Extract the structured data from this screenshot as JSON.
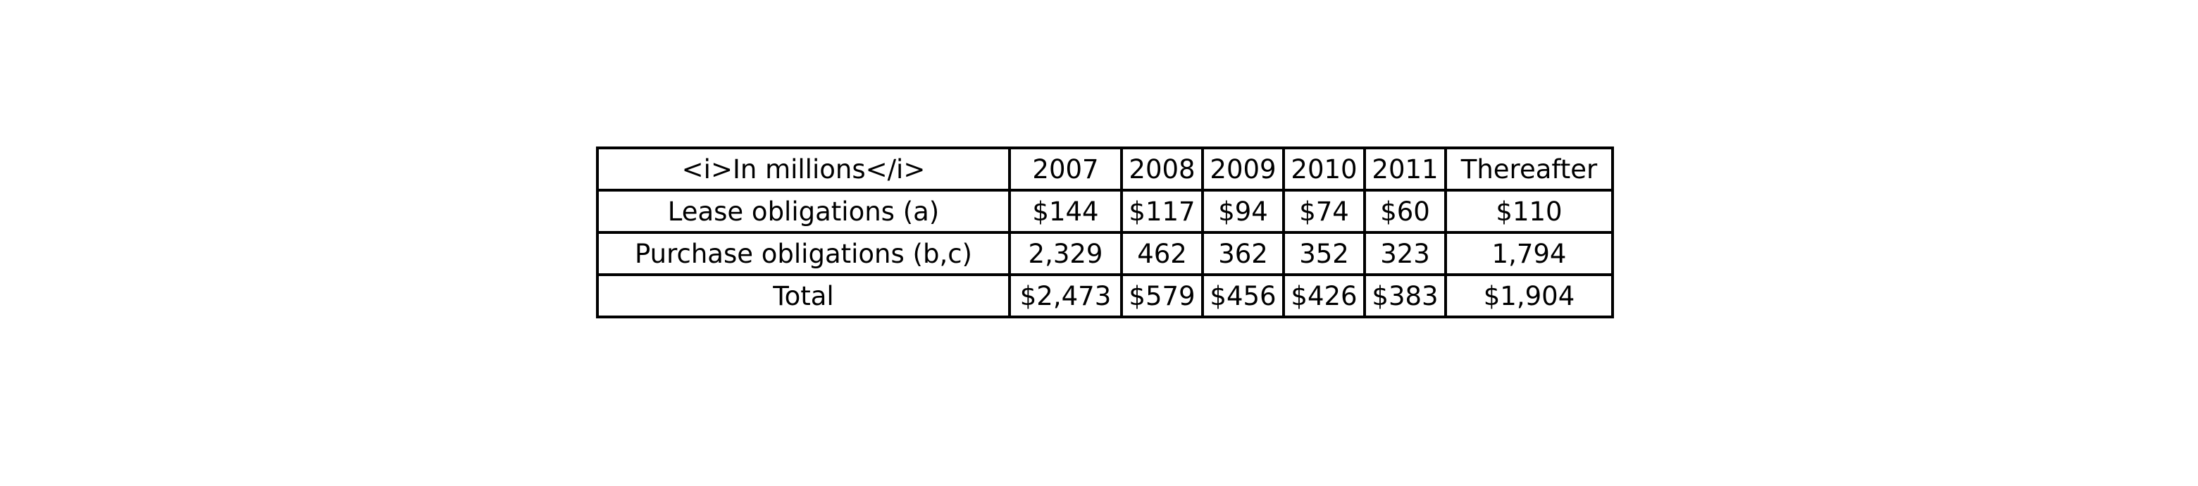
{
  "chart_data": {
    "type": "table",
    "columns": [
      "<i>In millions</i>",
      "2007",
      "2008",
      "2009",
      "2010",
      "2011",
      "Thereafter"
    ],
    "rows": [
      [
        "Lease obligations (a)",
        "$144",
        "$117",
        "$94",
        "$74",
        "$60",
        "$110"
      ],
      [
        "Purchase obligations (b,c)",
        "2,329",
        "462",
        "362",
        "352",
        "323",
        "1,794"
      ],
      [
        "Total",
        "$2,473",
        "$579",
        "$456",
        "$426",
        "$383",
        "$1,904"
      ]
    ]
  },
  "colors": {
    "border": "#000000",
    "text": "#000000",
    "background": "#ffffff"
  }
}
